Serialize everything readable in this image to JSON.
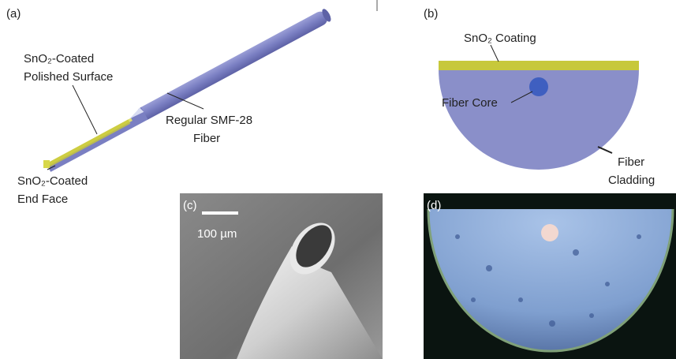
{
  "panels": [
    {
      "label": "(a)",
      "texts": [
        "SnO₂-Coated",
        "Polished Surface",
        "Regular SMF-28",
        "Fiber",
        "SnO₂-Coated",
        "End Face"
      ]
    },
    {
      "label": "(b)",
      "texts": [
        "SnO₂ Coating",
        "Fiber Core",
        "Fiber",
        "Cladding"
      ]
    },
    {
      "label": "(c)",
      "texts": [
        "100 µm"
      ]
    },
    {
      "label": "(d)",
      "texts": []
    }
  ]
}
